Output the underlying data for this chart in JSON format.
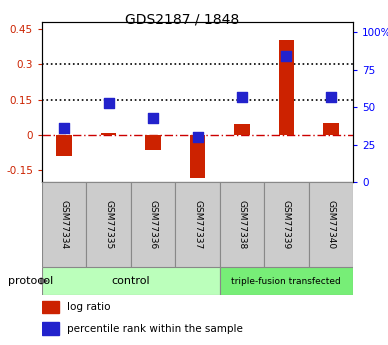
{
  "title": "GDS2187 / 1848",
  "samples": [
    "GSM77334",
    "GSM77335",
    "GSM77336",
    "GSM77337",
    "GSM77338",
    "GSM77339",
    "GSM77340"
  ],
  "log_ratio": [
    -0.09,
    0.01,
    -0.065,
    -0.185,
    0.048,
    0.405,
    0.05
  ],
  "percentile_rank": [
    36,
    53,
    43,
    30,
    57,
    84,
    57
  ],
  "ylim_left": [
    -0.2,
    0.48
  ],
  "ylim_right": [
    0,
    106.67
  ],
  "left_ticks": [
    -0.15,
    0.0,
    0.15,
    0.3,
    0.45
  ],
  "left_tick_labels": [
    "-0.15",
    "0",
    "0.15",
    "0.3",
    "0.45"
  ],
  "right_ticks": [
    0,
    25,
    50,
    75,
    100
  ],
  "right_tick_labels": [
    "0",
    "25",
    "50",
    "75",
    "100%"
  ],
  "hlines": [
    0.15,
    0.3
  ],
  "ctrl_n": 4,
  "tfx_n": 3,
  "ctrl_label": "control",
  "tfx_label": "triple-fusion transfected",
  "ctrl_color": "#bbffbb",
  "tfx_color": "#77ee77",
  "sample_box_color": "#cccccc",
  "bar_color": "#cc2200",
  "dot_color": "#2222cc",
  "protocol_label": "protocol",
  "legend_items": [
    {
      "color": "#cc2200",
      "label": "log ratio"
    },
    {
      "color": "#2222cc",
      "label": "percentile rank within the sample"
    }
  ],
  "bar_width": 0.35,
  "dot_size": 55,
  "background_color": "#ffffff",
  "zero_line_color": "#cc0000",
  "hline_color": "#000000",
  "title_fontsize": 10,
  "tick_fontsize": 7.5,
  "label_fontsize": 6.5,
  "legend_fontsize": 7.5
}
